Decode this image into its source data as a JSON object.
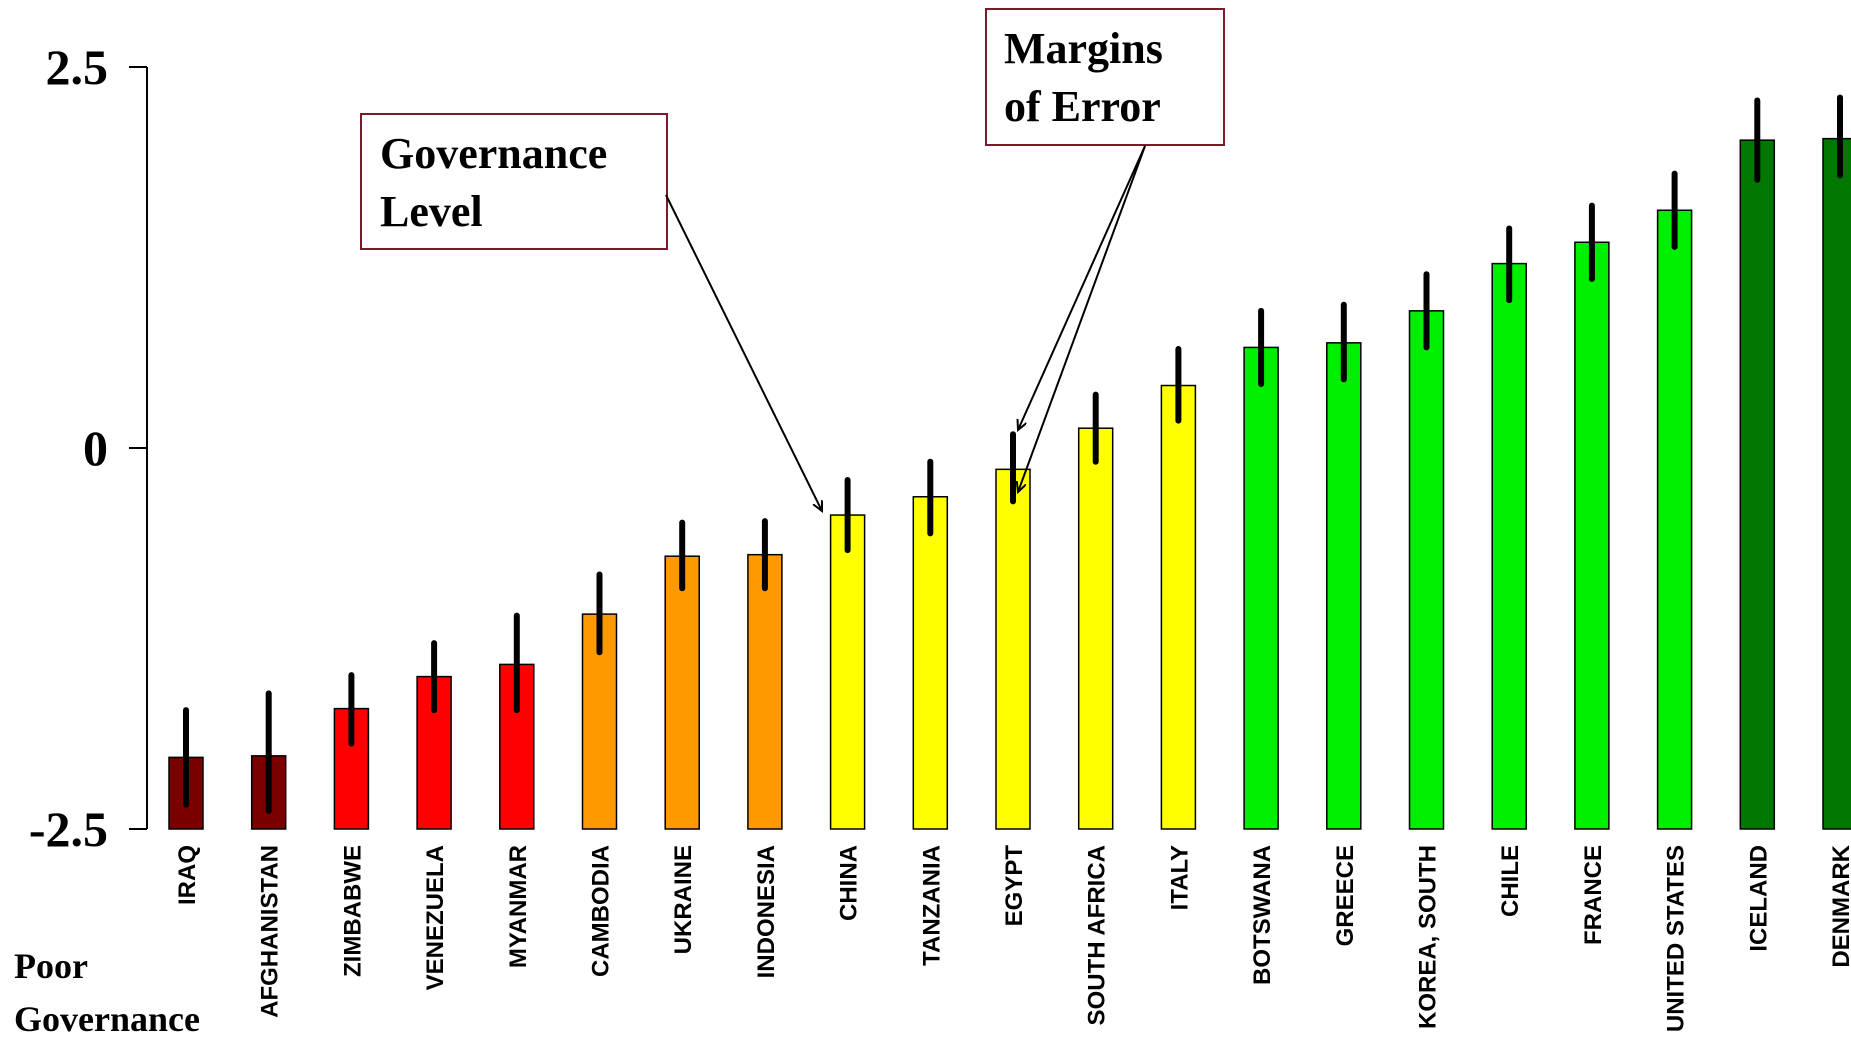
{
  "chart_data": {
    "type": "bar",
    "title": "",
    "xlabel": "",
    "ylabel": "",
    "ylim": [
      -2.5,
      2.5
    ],
    "yticks": [
      "2.5",
      "0",
      "-2.5"
    ],
    "ytick_values": [
      2.5,
      0,
      -2.5
    ],
    "grid": false,
    "bar_baseline": -2.5,
    "categories": [
      "IRAQ",
      "AFGHANISTAN",
      "ZIMBABWE",
      "VENEZUELA",
      "MYANMAR",
      "CAMBODIA",
      "UKRAINE",
      "INDONESIA",
      "CHINA",
      "TANZANIA",
      "EGYPT",
      "SOUTH AFRICA",
      "ITALY",
      "BOTSWANA",
      "GREECE",
      "KOREA, SOUTH",
      "CHILE",
      "FRANCE",
      "UNITED STATES",
      "ICELAND",
      "DENMARK"
    ],
    "values": [
      -2.03,
      -2.02,
      -1.71,
      -1.5,
      -1.42,
      -1.09,
      -0.71,
      -0.7,
      -0.44,
      -0.32,
      -0.14,
      0.13,
      0.41,
      0.66,
      0.69,
      0.9,
      1.21,
      1.35,
      1.56,
      2.02,
      2.03
    ],
    "error_low": [
      -2.34,
      -2.38,
      -1.94,
      -1.72,
      -1.72,
      -1.34,
      -0.92,
      -0.92,
      -0.67,
      -0.56,
      -0.35,
      -0.09,
      0.18,
      0.42,
      0.45,
      0.66,
      0.97,
      1.11,
      1.32,
      1.76,
      1.79
    ],
    "error_high": [
      -1.72,
      -1.61,
      -1.49,
      -1.28,
      -1.1,
      -0.83,
      -0.49,
      -0.48,
      -0.21,
      -0.09,
      0.09,
      0.35,
      0.65,
      0.9,
      0.94,
      1.14,
      1.44,
      1.59,
      1.8,
      2.28,
      2.3
    ],
    "colors": [
      "#7a0000",
      "#7a0000",
      "#ff0000",
      "#ff0000",
      "#ff0000",
      "#ff9900",
      "#ff9900",
      "#ff9900",
      "#ffff00",
      "#ffff00",
      "#ffff00",
      "#ffff00",
      "#ffff00",
      "#00ee00",
      "#00ee00",
      "#00ee00",
      "#00ee00",
      "#00ee00",
      "#00ee00",
      "#007700",
      "#007700"
    ],
    "annotations": {
      "governance_level": {
        "line1": "Governance",
        "line2": "Level"
      },
      "margins_of_error": {
        "line1": "Margins",
        "line2": "of Error"
      },
      "poor_governance": {
        "line1": "Poor",
        "line2": "Governance"
      }
    },
    "annotation_border_color": "#7a1a2a"
  }
}
